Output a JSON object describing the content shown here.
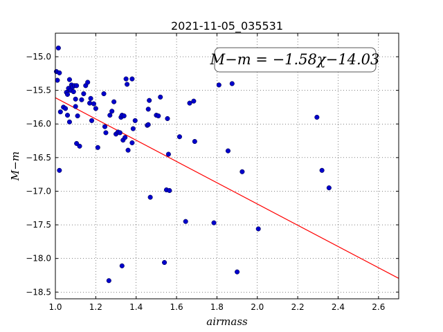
{
  "chart_data": {
    "type": "scatter",
    "title": "2021-11-05_035531",
    "xlabel": "airmass",
    "ylabel": "M−m",
    "annotation": "M−m = −1.58χ−14.03",
    "xlim": [
      1.0,
      2.7
    ],
    "ylim": [
      -18.6,
      -14.65
    ],
    "y_inverted": true,
    "grid": true,
    "xticks": [
      "1.0",
      "1.2",
      "1.4",
      "1.6",
      "1.8",
      "2.0",
      "2.2",
      "2.4",
      "2.6"
    ],
    "xtick_values": [
      1.0,
      1.2,
      1.4,
      1.6,
      1.8,
      2.0,
      2.2,
      2.4,
      2.6
    ],
    "yticks": [
      "−15.0",
      "−15.5",
      "−16.0",
      "−16.5",
      "−17.0",
      "−17.5",
      "−18.0",
      "−18.5"
    ],
    "ytick_values": [
      -15.0,
      -15.5,
      -16.0,
      -16.5,
      -17.0,
      -17.5,
      -18.0,
      -18.5
    ],
    "fit": {
      "slope": -1.58,
      "intercept": -14.03,
      "color": "#ff0000"
    },
    "point_color": "#0000cc",
    "points": [
      [
        1.005,
        -15.22
      ],
      [
        1.01,
        -15.35
      ],
      [
        1.015,
        -14.87
      ],
      [
        1.02,
        -15.24
      ],
      [
        1.02,
        -16.69
      ],
      [
        1.025,
        -15.82
      ],
      [
        1.04,
        -15.75
      ],
      [
        1.05,
        -15.77
      ],
      [
        1.055,
        -15.53
      ],
      [
        1.06,
        -15.56
      ],
      [
        1.06,
        -15.87
      ],
      [
        1.065,
        -15.47
      ],
      [
        1.07,
        -15.34
      ],
      [
        1.07,
        -15.97
      ],
      [
        1.075,
        -15.5
      ],
      [
        1.08,
        -15.42
      ],
      [
        1.085,
        -15.45
      ],
      [
        1.09,
        -15.52
      ],
      [
        1.095,
        -15.43
      ],
      [
        1.1,
        -15.63
      ],
      [
        1.1,
        -15.74
      ],
      [
        1.105,
        -15.43
      ],
      [
        1.105,
        -16.29
      ],
      [
        1.11,
        -15.88
      ],
      [
        1.12,
        -16.33
      ],
      [
        1.13,
        -15.64
      ],
      [
        1.14,
        -15.55
      ],
      [
        1.15,
        -15.43
      ],
      [
        1.16,
        -15.38
      ],
      [
        1.17,
        -15.69
      ],
      [
        1.175,
        -15.62
      ],
      [
        1.18,
        -15.95
      ],
      [
        1.19,
        -15.7
      ],
      [
        1.2,
        -15.77
      ],
      [
        1.21,
        -16.35
      ],
      [
        1.24,
        -15.55
      ],
      [
        1.245,
        -16.04
      ],
      [
        1.25,
        -16.13
      ],
      [
        1.265,
        -18.33
      ],
      [
        1.27,
        -15.87
      ],
      [
        1.28,
        -15.81
      ],
      [
        1.29,
        -15.67
      ],
      [
        1.3,
        -16.15
      ],
      [
        1.31,
        -16.12
      ],
      [
        1.32,
        -16.13
      ],
      [
        1.325,
        -15.9
      ],
      [
        1.33,
        -15.87
      ],
      [
        1.33,
        -18.11
      ],
      [
        1.335,
        -16.24
      ],
      [
        1.34,
        -15.88
      ],
      [
        1.345,
        -16.2
      ],
      [
        1.35,
        -15.33
      ],
      [
        1.355,
        -15.41
      ],
      [
        1.36,
        -16.39
      ],
      [
        1.38,
        -15.33
      ],
      [
        1.38,
        -16.28
      ],
      [
        1.385,
        -16.07
      ],
      [
        1.395,
        -15.95
      ],
      [
        1.455,
        -16.02
      ],
      [
        1.46,
        -16.01
      ],
      [
        1.46,
        -15.78
      ],
      [
        1.465,
        -15.65
      ],
      [
        1.47,
        -17.09
      ],
      [
        1.5,
        -15.87
      ],
      [
        1.51,
        -15.88
      ],
      [
        1.52,
        -15.6
      ],
      [
        1.54,
        -18.06
      ],
      [
        1.55,
        -16.98
      ],
      [
        1.555,
        -15.92
      ],
      [
        1.56,
        -16.45
      ],
      [
        1.565,
        -16.99
      ],
      [
        1.615,
        -16.19
      ],
      [
        1.645,
        -17.45
      ],
      [
        1.665,
        -15.69
      ],
      [
        1.685,
        -15.66
      ],
      [
        1.69,
        -16.26
      ],
      [
        1.785,
        -17.47
      ],
      [
        1.81,
        -15.42
      ],
      [
        1.855,
        -16.4
      ],
      [
        1.875,
        -15.4
      ],
      [
        1.9,
        -18.2
      ],
      [
        1.925,
        -16.71
      ],
      [
        2.005,
        -17.56
      ],
      [
        2.295,
        -15.9
      ],
      [
        2.32,
        -16.69
      ],
      [
        2.355,
        -16.95
      ]
    ]
  }
}
